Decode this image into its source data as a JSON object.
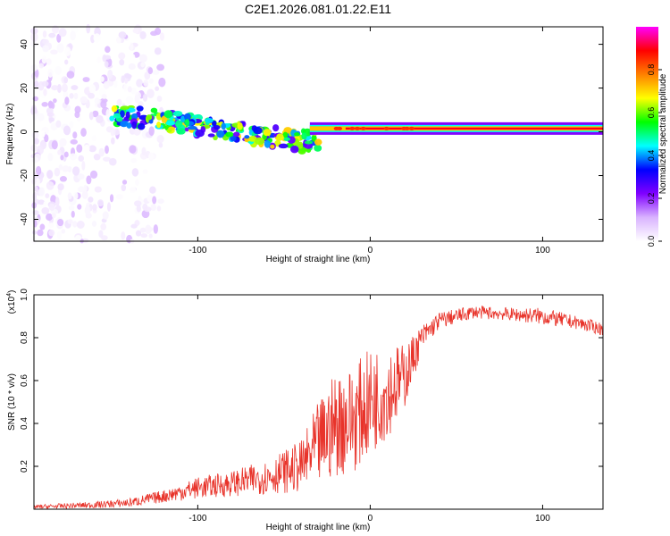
{
  "figure_title": "C2E1.2026.081.01.22.E11",
  "colors": {
    "snr_line": "#e8332a",
    "axis": "#000000",
    "background": "#ffffff"
  },
  "chart_data": [
    {
      "type": "heatmap",
      "name": "spectrogram",
      "title": "C2E1.2026.081.01.22.E11",
      "xlabel": "Height of straight line (km)",
      "ylabel": "Frequency (Hz)",
      "xlim": [
        -195,
        135
      ],
      "ylim": [
        -50,
        48
      ],
      "xticks": [
        -100,
        0,
        100
      ],
      "xtick_labels": [
        "-100",
        "0",
        "100"
      ],
      "yticks": [
        -40,
        -20,
        0,
        20,
        40
      ],
      "ytick_labels": [
        "-40",
        "-20",
        "0",
        "20",
        "40"
      ],
      "colorbar": {
        "label": "Normalized spectral amplitude",
        "range": [
          0,
          1
        ],
        "ticks": [
          0.0,
          0.2,
          0.4,
          0.6,
          0.8
        ],
        "tick_labels": [
          "0.0",
          "0.2",
          "0.4",
          "0.6",
          "0.8"
        ],
        "colormap": [
          "#ffffff",
          "#d9b3ff",
          "#8000ff",
          "#0000ff",
          "#00ffff",
          "#00ff00",
          "#ffff00",
          "#ff8000",
          "#ff0000",
          "#ff00ff"
        ]
      },
      "features": [
        {
          "description": "noise scatter",
          "x_range": [
            -195,
            -120
          ],
          "y_range": [
            -50,
            48
          ],
          "amplitude": 0.15
        },
        {
          "description": "descending band",
          "x": [
            -150,
            -100,
            -60,
            -30
          ],
          "y": [
            8,
            3,
            -2,
            -5
          ],
          "amplitude": 0.5
        },
        {
          "description": "steady carrier",
          "x_range": [
            -35,
            135
          ],
          "y": 1.5,
          "amplitude": 0.9
        }
      ]
    },
    {
      "type": "line",
      "name": "snr",
      "xlabel": "Height of straight line (km)",
      "ylabel": "SNR (10 * v/v)",
      "yscale_label": "(x10",
      "yscale_exponent": "4",
      "yscale_suffix": ")",
      "xlim": [
        -195,
        135
      ],
      "ylim": [
        0,
        1.0
      ],
      "xticks": [
        -100,
        0,
        100
      ],
      "xtick_labels": [
        "-100",
        "0",
        "100"
      ],
      "yticks": [
        0.2,
        0.4,
        0.6,
        0.8,
        1.0
      ],
      "ytick_labels": [
        "0.2",
        "0.4",
        "0.6",
        "0.8",
        "1.0"
      ],
      "series": [
        {
          "name": "SNR",
          "envelope_x": [
            -195,
            -160,
            -140,
            -120,
            -100,
            -80,
            -60,
            -40,
            -30,
            -20,
            -10,
            0,
            10,
            20,
            30,
            40,
            60,
            80,
            100,
            120,
            135
          ],
          "envelope_y": [
            0.01,
            0.02,
            0.03,
            0.06,
            0.1,
            0.12,
            0.15,
            0.2,
            0.3,
            0.4,
            0.42,
            0.5,
            0.55,
            0.62,
            0.8,
            0.88,
            0.92,
            0.91,
            0.9,
            0.87,
            0.84
          ],
          "noise_amplitude": [
            0.01,
            0.015,
            0.02,
            0.03,
            0.05,
            0.06,
            0.08,
            0.12,
            0.2,
            0.25,
            0.25,
            0.25,
            0.22,
            0.15,
            0.06,
            0.04,
            0.03,
            0.03,
            0.04,
            0.03,
            0.03
          ]
        }
      ]
    }
  ]
}
